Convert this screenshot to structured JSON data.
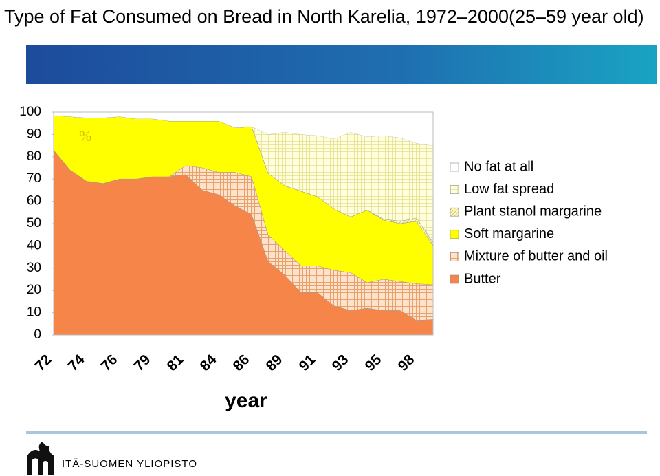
{
  "chart_data": {
    "type": "stacked-area",
    "title": "Type of Fat Consumed on Bread in North Karelia, 1972–2000(25–59 year old)",
    "unit_label": "%",
    "x_label": "year",
    "footer": "ITÄ-SUOMEN YLIOPISTO",
    "categories": [
      "72",
      null,
      "74",
      null,
      "76",
      null,
      "79",
      null,
      "81",
      null,
      "84",
      null,
      "86",
      null,
      "89",
      null,
      "91",
      null,
      "93",
      null,
      "95",
      null,
      "98",
      null
    ],
    "ylim": [
      0,
      100
    ],
    "yticks": [
      0,
      10,
      20,
      30,
      40,
      50,
      60,
      70,
      80,
      90,
      100
    ],
    "series": [
      {
        "name": "Butter",
        "color": "#f58549",
        "values": [
          83,
          74,
          69,
          68,
          70,
          70,
          71,
          71,
          72,
          65,
          63,
          58,
          54,
          33,
          27,
          19,
          19,
          13,
          11,
          12,
          11,
          11,
          6.5,
          7
        ]
      },
      {
        "name": "Mixture of butter and oil",
        "color": "#fbd5b5",
        "values": [
          0,
          0,
          0,
          0,
          0,
          0,
          0,
          0,
          4,
          10,
          10,
          15,
          17,
          12,
          11,
          12,
          12,
          16,
          17,
          11.5,
          14,
          13,
          16.5,
          15.5
        ]
      },
      {
        "name": "Soft margarine",
        "color": "#ffff00",
        "values": [
          15.5,
          24,
          28.5,
          29.5,
          28,
          27,
          26,
          25,
          20,
          21,
          23,
          20,
          22.5,
          27.5,
          29,
          33.5,
          31,
          27.5,
          25,
          32.5,
          26.5,
          26,
          28,
          17.5
        ]
      },
      {
        "name": "Plant stanol margarine",
        "color": "#f6f3a0",
        "values": [
          0,
          0,
          0,
          0,
          0,
          0,
          0,
          0,
          0,
          0,
          0,
          0,
          0,
          0,
          0,
          0,
          0,
          0,
          0,
          0,
          0.5,
          1,
          1.5,
          1.5
        ]
      },
      {
        "name": "Low fat spread",
        "color": "#ffffcc",
        "values": [
          0,
          0,
          0,
          0,
          0,
          0,
          0,
          0,
          0,
          0,
          0,
          0,
          0,
          17.5,
          24,
          25.5,
          27.5,
          31.5,
          38,
          33,
          37.5,
          37.5,
          33.5,
          43.5
        ]
      },
      {
        "name": "No fat at all",
        "color": "#ffffff",
        "values": [
          1.5,
          2,
          2.5,
          2.5,
          2,
          3,
          3,
          4,
          4,
          4,
          4,
          7,
          6.5,
          10,
          9,
          10,
          10.5,
          12,
          9,
          11,
          10.5,
          11.5,
          14,
          15
        ]
      }
    ]
  }
}
